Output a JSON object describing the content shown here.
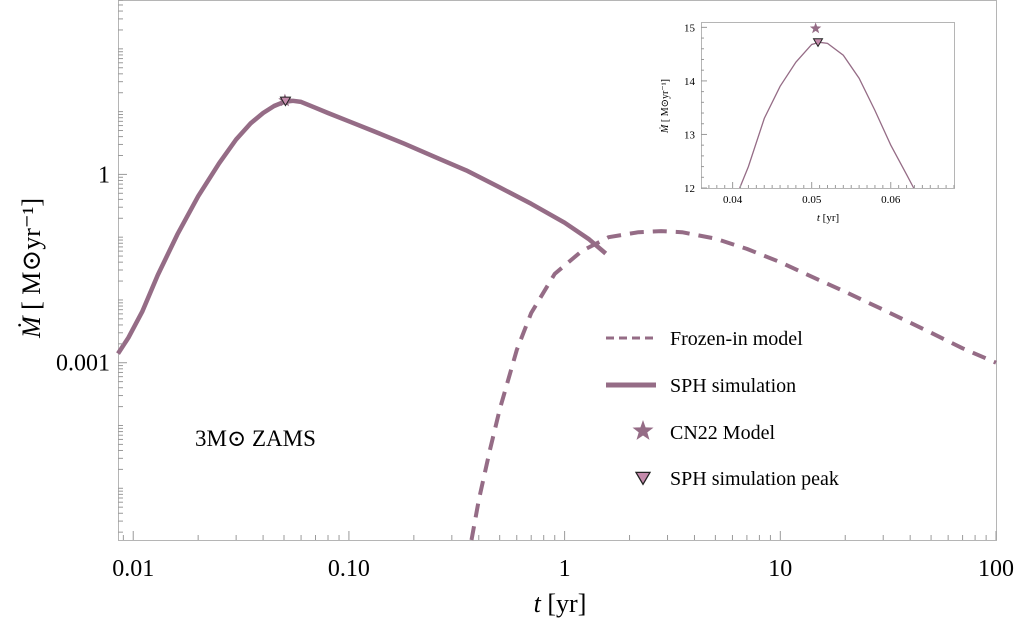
{
  "colors": {
    "series": "#956c86",
    "marker_fill": "#c48aab",
    "frame": "#b5b5b5"
  },
  "chart_data": [
    {
      "type": "line",
      "annotation": "3M⊙ ZAMS",
      "xlabel": {
        "italic": "t",
        "rest": " [yr]"
      },
      "ylabel": {
        "mdot": "Ṁ",
        "rest": " [ M⊙yr⁻¹]"
      },
      "x_scale": "log",
      "y_scale": "log",
      "xlim": [
        0.0085,
        100
      ],
      "ylim": [
        1.5e-06,
        600
      ],
      "x_ticks": [
        {
          "value": 0.01,
          "label": "0.01"
        },
        {
          "value": 0.1,
          "label": "0.10"
        },
        {
          "value": 1,
          "label": "1"
        },
        {
          "value": 10,
          "label": "10"
        },
        {
          "value": 100,
          "label": "100"
        }
      ],
      "y_ticks": [
        {
          "value": 1,
          "label": "1"
        },
        {
          "value": 0.001,
          "label": "0.001"
        }
      ],
      "legend_position": "bottom-right",
      "series": [
        {
          "name": "SPH simulation",
          "style": "solid",
          "x": [
            0.0085,
            0.0095,
            0.011,
            0.013,
            0.016,
            0.02,
            0.025,
            0.03,
            0.035,
            0.04,
            0.045,
            0.05,
            0.055,
            0.06,
            0.07,
            0.08,
            0.1,
            0.13,
            0.18,
            0.25,
            0.35,
            0.5,
            0.7,
            1.0,
            1.3,
            1.55
          ],
          "y": [
            0.0014,
            0.0025,
            0.0065,
            0.025,
            0.11,
            0.45,
            1.5,
            3.6,
            6.5,
            9.5,
            12.3,
            14.3,
            14.9,
            14.3,
            11.5,
            9.5,
            7.0,
            4.9,
            3.1,
            1.9,
            1.16,
            0.62,
            0.34,
            0.17,
            0.092,
            0.055
          ]
        },
        {
          "name": "Frozen-in model",
          "style": "dashed",
          "x": [
            0.37,
            0.4,
            0.45,
            0.5,
            0.6,
            0.7,
            0.9,
            1.2,
            1.6,
            2.2,
            2.8,
            3.5,
            5,
            7,
            10,
            15,
            20,
            30,
            50,
            70,
            100
          ],
          "y": [
            1.5e-06,
            6.5e-06,
            4e-05,
            0.00018,
            0.0016,
            0.0062,
            0.026,
            0.06,
            0.1,
            0.12,
            0.125,
            0.12,
            0.095,
            0.065,
            0.04,
            0.021,
            0.0135,
            0.007,
            0.003,
            0.0017,
            0.001
          ]
        }
      ],
      "markers": [
        {
          "name": "CN22 Model",
          "shape": "star",
          "x": 0.0505,
          "y": 14.98
        },
        {
          "name": "SPH simulation peak",
          "shape": "triangle-down",
          "x": 0.0508,
          "y": 14.72
        }
      ]
    },
    {
      "type": "line",
      "role": "inset",
      "xlabel": {
        "italic": "t",
        "rest": " [yr]"
      },
      "ylabel": {
        "mdot": "Ṁ",
        "rest": " [ M⊙yr⁻¹]"
      },
      "xlim": [
        0.036,
        0.068
      ],
      "ylim": [
        12,
        15.1
      ],
      "x_ticks": [
        0.04,
        0.05,
        0.06
      ],
      "x_tick_labels": [
        "0.04",
        "0.05",
        "0.06"
      ],
      "y_ticks": [
        12,
        13,
        14,
        15
      ],
      "y_tick_labels": [
        "12",
        "13",
        "14",
        "15"
      ],
      "series": [
        {
          "style": "solid",
          "x": [
            0.0409,
            0.042,
            0.044,
            0.046,
            0.048,
            0.05,
            0.051,
            0.052,
            0.054,
            0.056,
            0.058,
            0.06,
            0.062,
            0.0629
          ],
          "y": [
            12.0,
            12.4,
            13.3,
            13.9,
            14.35,
            14.68,
            14.72,
            14.7,
            14.48,
            14.05,
            13.45,
            12.8,
            12.25,
            12.0
          ]
        }
      ],
      "markers": [
        {
          "shape": "star",
          "x": 0.0505,
          "y": 14.98
        },
        {
          "shape": "triangle-down",
          "x": 0.0508,
          "y": 14.72
        }
      ]
    }
  ]
}
